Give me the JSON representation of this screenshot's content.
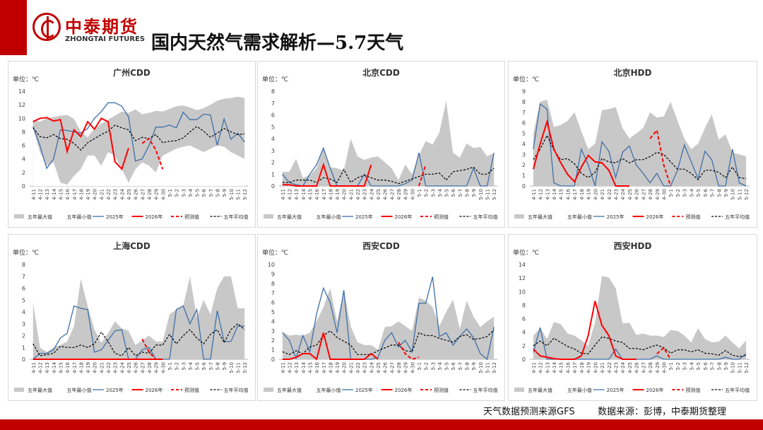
{
  "header": {
    "brand_cn": "中泰期货",
    "brand_en": "ZHONGTAI FUTURES",
    "title": "国内天然气需求解析—5.7天气"
  },
  "footer": {
    "forecast_source": "天气数据预测来源GFS",
    "data_source": "数据来源：彭博，中泰期货整理"
  },
  "colors": {
    "brand": "#c00000",
    "band": "#c8c8c8",
    "y2025": "#3f6fa8",
    "y2026": "#ff0000",
    "avg": "#000000"
  },
  "chart_data": [
    {
      "type": "line",
      "title": "广州CDD",
      "unit": "单位：℃",
      "ylim": [
        0,
        14
      ],
      "yticks": [
        0,
        2,
        4,
        6,
        8,
        10,
        12,
        14
      ],
      "categories": [
        "4-11",
        "4-12",
        "4-13",
        "4-14",
        "4-15",
        "4-16",
        "4-17",
        "4-18",
        "4-19",
        "4-20",
        "4-21",
        "4-22",
        "4-23",
        "4-24",
        "4-25",
        "4-26",
        "4-27",
        "4-28",
        "4-29",
        "4-30",
        "5-1",
        "5-2",
        "5-3",
        "5-4",
        "5-5",
        "5-6",
        "5-7",
        "5-8",
        "5-9",
        "5-10",
        "5-11",
        "5-12"
      ],
      "band_max": [
        9.8,
        9.5,
        10,
        10.2,
        10.4,
        10.5,
        9.9,
        8,
        7.2,
        8.5,
        9.2,
        9.8,
        10.4,
        11,
        10.8,
        11.3,
        10.6,
        10.8,
        11.1,
        11,
        11.4,
        11.8,
        11.9,
        11.6,
        11.2,
        11.5,
        12,
        12.6,
        12.9,
        13,
        13.2,
        13
      ],
      "band_min": [
        8.5,
        5,
        3,
        3.5,
        0.5,
        0.2,
        1.5,
        2.5,
        4.5,
        4.5,
        3,
        5,
        4.5,
        2.5,
        0.5,
        2.5,
        3.5,
        3,
        2,
        4.5,
        5,
        5.5,
        5.8,
        6,
        5.5,
        5,
        5.5,
        6,
        5.8,
        5,
        4.5,
        4
      ],
      "y2025": [
        8.8,
        6,
        2.6,
        4,
        8.3,
        8.2,
        8,
        7.8,
        8.5,
        10,
        11,
        12.3,
        12.3,
        11.8,
        10.2,
        3.7,
        4,
        6,
        8.7,
        8.7,
        9,
        8.6,
        10.9,
        9.8,
        9.8,
        10.6,
        10.5,
        6,
        9.9,
        6.9,
        7.8,
        6.5
      ],
      "y2026": [
        9.5,
        10,
        10.1,
        9.6,
        9.8,
        5.1,
        8.3,
        7.3,
        9.5,
        8.4,
        10,
        9.5,
        3.6,
        2.5,
        5.6
      ],
      "forecast": [
        null,
        null,
        null,
        null,
        null,
        null,
        null,
        null,
        null,
        null,
        null,
        null,
        null,
        null,
        null,
        null,
        6.3,
        7,
        5.3,
        2.5
      ],
      "avg": [
        8.6,
        7.3,
        7.1,
        7.6,
        7,
        6.9,
        6.3,
        5.3,
        6.4,
        7,
        7.6,
        8.1,
        9,
        8.6,
        8.3,
        6.7,
        7.2,
        7,
        7.6,
        6.4,
        6.6,
        6.7,
        7.1,
        8,
        8.8,
        8.1,
        7.2,
        7.8,
        8.5,
        8,
        7.6,
        7.7
      ]
    },
    {
      "type": "line",
      "title": "北京CDD",
      "unit": "单位：℃",
      "ylim": [
        0,
        8
      ],
      "yticks": [
        0,
        1,
        2,
        3,
        4,
        5,
        6,
        7,
        8
      ],
      "categories": [
        "4-11",
        "4-12",
        "4-13",
        "4-14",
        "4-15",
        "4-16",
        "4-17",
        "4-18",
        "4-19",
        "4-20",
        "4-21",
        "4-22",
        "4-23",
        "4-24",
        "4-25",
        "4-26",
        "4-27",
        "4-28",
        "4-29",
        "4-30",
        "5-1",
        "5-2",
        "5-3",
        "5-4",
        "5-5",
        "5-6",
        "5-7",
        "5-8",
        "5-9",
        "5-10",
        "5-11",
        "5-12"
      ],
      "band_max": [
        1.2,
        1.2,
        2.3,
        0.7,
        0.9,
        1.5,
        3.2,
        1.6,
        1.5,
        1.3,
        4,
        2.5,
        2.2,
        2.4,
        2.5,
        2,
        1.5,
        0.5,
        1.8,
        1,
        2.6,
        3.8,
        3.5,
        4.5,
        7.2,
        2.8,
        2.4,
        3.6,
        3.2,
        3.3,
        2.5,
        2.8
      ],
      "band_min": [
        0,
        0,
        0,
        0,
        0,
        0,
        0,
        0,
        0,
        0,
        0,
        0,
        0,
        0,
        0,
        0,
        0,
        0,
        0,
        0,
        0,
        0,
        0,
        0,
        0,
        0,
        0,
        0,
        0,
        0,
        0,
        0
      ],
      "y2025": [
        1,
        0.3,
        0.1,
        0,
        1,
        1.8,
        3.2,
        1.5,
        0,
        0,
        0,
        0,
        1,
        0,
        0,
        0,
        0,
        0,
        0.2,
        0.5,
        2.8,
        0,
        0,
        0,
        0,
        0,
        0,
        0,
        1.5,
        0,
        0,
        2.8
      ],
      "y2026": [
        0.1,
        0.1,
        0,
        0,
        0,
        0,
        1.8,
        0,
        0,
        0,
        0,
        0,
        0,
        1.8
      ],
      "forecast": [
        null,
        null,
        null,
        null,
        null,
        null,
        null,
        null,
        null,
        null,
        null,
        null,
        null,
        null,
        null,
        null,
        null,
        null,
        null,
        null,
        0,
        1.8
      ],
      "avg": [
        0.3,
        0.3,
        0.5,
        0.5,
        0.5,
        0.3,
        0.7,
        0.6,
        0.3,
        1.4,
        0.3,
        0.7,
        0.9,
        0.7,
        0.5,
        0.5,
        0.4,
        0.2,
        0.4,
        0.6,
        0.8,
        1,
        1,
        1.1,
        0.5,
        1.2,
        1.3,
        1.4,
        1.6,
        1,
        1,
        1.5
      ]
    },
    {
      "type": "line",
      "title": "北京HDD",
      "unit": "单位：℃",
      "ylim": [
        0,
        9
      ],
      "yticks": [
        0,
        1,
        2,
        3,
        4,
        5,
        6,
        7,
        8,
        9
      ],
      "categories": [
        "4-11",
        "4-12",
        "4-13",
        "4-14",
        "4-15",
        "4-16",
        "4-17",
        "4-18",
        "4-19",
        "4-20",
        "4-21",
        "4-22",
        "4-23",
        "4-24",
        "4-25",
        "4-26",
        "4-27",
        "4-28",
        "4-29",
        "4-30",
        "5-1",
        "5-2",
        "5-3",
        "5-4",
        "5-5",
        "5-6",
        "5-7",
        "5-8",
        "5-9",
        "5-10",
        "5-11",
        "5-12"
      ],
      "band_max": [
        5,
        8,
        8.2,
        5.6,
        5.8,
        6.2,
        7,
        5.2,
        3.5,
        4,
        7.2,
        7.3,
        7.5,
        5.5,
        4.5,
        5,
        5.5,
        7,
        6.5,
        6.6,
        8,
        6.2,
        4.5,
        3.5,
        4,
        5.5,
        6.8,
        4.4,
        4.9,
        3.2,
        3,
        2.8
      ],
      "band_min": [
        0,
        0,
        0,
        0,
        0,
        0,
        0,
        0,
        0,
        0,
        0,
        0,
        0,
        0,
        0,
        0,
        0,
        0,
        0,
        0,
        0,
        0,
        0,
        0,
        0,
        0,
        0,
        0,
        0,
        0,
        0,
        0
      ],
      "y2025": [
        3.5,
        7.8,
        7.3,
        0.3,
        0,
        0,
        0,
        3.5,
        2,
        0,
        4.2,
        3.3,
        0.8,
        3.2,
        3.8,
        2,
        1.2,
        0.3,
        1.2,
        0,
        0,
        1.5,
        3.9,
        2.3,
        0.7,
        3.3,
        2.5,
        0,
        0,
        3.5,
        0.3,
        0
      ],
      "y2026": [
        1.6,
        4,
        6.1,
        3.5,
        2.2,
        1.1,
        0.4,
        1.8,
        2.9,
        2.3,
        2.2,
        1.5,
        0,
        0,
        0
      ],
      "forecast": [
        null,
        null,
        null,
        null,
        null,
        null,
        null,
        null,
        null,
        null,
        null,
        null,
        null,
        null,
        null,
        null,
        null,
        4.5,
        5.3,
        2,
        0
      ],
      "avg": [
        2.5,
        3.5,
        4.8,
        3.4,
        2.5,
        2.6,
        2.1,
        1.2,
        0.8,
        1.3,
        2.6,
        2.3,
        2.2,
        2.6,
        2.2,
        2.5,
        2.5,
        2.8,
        3.2,
        3,
        2.3,
        1.6,
        1.6,
        1.2,
        0.6,
        1.5,
        1.5,
        1.3,
        0.8,
        1.8,
        0.8,
        0.7
      ]
    },
    {
      "type": "line",
      "title": "上海CDD",
      "unit": "单位：℃",
      "ylim": [
        0,
        8
      ],
      "yticks": [
        0,
        1,
        2,
        3,
        4,
        5,
        6,
        7,
        8
      ],
      "categories": [
        "4-11",
        "4-12",
        "4-13",
        "4-14",
        "4-15",
        "4-16",
        "4-17",
        "4-18",
        "4-19",
        "4-20",
        "4-21",
        "4-22",
        "4-23",
        "4-24",
        "4-25",
        "4-26",
        "4-27",
        "4-28",
        "4-29",
        "4-30",
        "5-1",
        "5-2",
        "5-3",
        "5-4",
        "5-5",
        "5-6",
        "5-7",
        "5-8",
        "5-9",
        "5-10",
        "5-11",
        "5-12"
      ],
      "band_max": [
        4.8,
        1,
        0.6,
        1,
        1.2,
        1.5,
        2.8,
        6.8,
        4.5,
        2.5,
        1.4,
        2.2,
        3.2,
        2.6,
        2.4,
        1.2,
        1.6,
        2,
        1.5,
        1.5,
        3.8,
        4.2,
        4.5,
        7,
        3.5,
        5,
        3.8,
        6,
        7,
        7,
        4.3,
        4.3
      ],
      "band_min": [
        0,
        0,
        0,
        0,
        0,
        0,
        0,
        0,
        0,
        0,
        0,
        0,
        0,
        0,
        0,
        0,
        0,
        0,
        0,
        0,
        0,
        0,
        0,
        0,
        0,
        0,
        0,
        0,
        0,
        0,
        0,
        0
      ],
      "y2025": [
        0,
        0.5,
        0.5,
        0.8,
        1.8,
        2.2,
        4.5,
        4.3,
        4.2,
        0.6,
        0.8,
        1.6,
        2.4,
        2.5,
        0,
        0,
        0.8,
        1,
        0,
        0,
        0,
        4.2,
        4.5,
        3,
        4.2,
        0,
        0,
        4.1,
        1.5,
        1.5,
        2.8,
        2.8
      ],
      "y2026": [
        0,
        0,
        0,
        0,
        0,
        0,
        0,
        0,
        0,
        0,
        0,
        0,
        0,
        0,
        0,
        0,
        0,
        0,
        0,
        0
      ],
      "forecast": [
        null,
        null,
        null,
        null,
        null,
        null,
        null,
        null,
        null,
        null,
        null,
        null,
        null,
        null,
        null,
        null,
        1.7,
        0.6,
        0,
        0
      ],
      "avg": [
        1.3,
        0.3,
        0.4,
        0.5,
        1.1,
        1,
        1,
        1.2,
        1,
        1.3,
        2.3,
        1.5,
        0.5,
        0.3,
        1,
        0.3,
        0.6,
        0.5,
        1.2,
        1.2,
        2.1,
        1.3,
        2,
        2.5,
        1.8,
        1.3,
        2.1,
        2.5,
        1.4,
        2.5,
        3,
        2.5
      ]
    },
    {
      "type": "line",
      "title": "西安CDD",
      "unit": "单位：℃",
      "ylim": [
        0,
        10
      ],
      "yticks": [
        0,
        1,
        2,
        3,
        4,
        5,
        6,
        7,
        8,
        9,
        10
      ],
      "categories": [
        "4-11",
        "4-12",
        "4-13",
        "4-14",
        "4-15",
        "4-16",
        "4-17",
        "4-18",
        "4-19",
        "4-20",
        "4-21",
        "4-22",
        "4-23",
        "4-24",
        "4-25",
        "4-26",
        "4-27",
        "4-28",
        "4-29",
        "4-30",
        "5-1",
        "5-2",
        "5-3",
        "5-4",
        "5-5",
        "5-6",
        "5-7",
        "5-8",
        "5-9",
        "5-10",
        "5-11",
        "5-12"
      ],
      "band_max": [
        2.9,
        2.5,
        2.6,
        2.5,
        2.8,
        4,
        5.5,
        7.5,
        4,
        7.3,
        3.5,
        1.8,
        1.5,
        1.5,
        1,
        3.4,
        3.5,
        4,
        3.5,
        3,
        6.5,
        6.2,
        5.5,
        3.5,
        5,
        6.3,
        3.2,
        6.2,
        4.5,
        3.4,
        4,
        4.5
      ],
      "band_min": [
        0,
        0,
        0,
        0,
        0,
        0,
        0,
        0,
        0,
        0,
        0,
        0,
        0,
        0,
        0,
        0,
        0,
        0,
        0,
        0,
        0,
        0,
        0,
        0,
        0,
        0,
        0,
        0,
        0,
        0,
        0,
        0
      ],
      "y2025": [
        2.8,
        2,
        0.1,
        2.5,
        0.8,
        4.8,
        7.5,
        6,
        2.8,
        7.3,
        0,
        0,
        0,
        0,
        0.2,
        2,
        2.8,
        1.3,
        2,
        0.8,
        5.9,
        5.9,
        8.7,
        2.4,
        2.8,
        1.5,
        2.4,
        3.2,
        2.3,
        0.6,
        0,
        3.4
      ],
      "y2026": [
        0,
        0,
        0.2,
        0.6,
        0.6,
        0,
        2.8,
        0,
        0,
        0,
        0,
        0,
        0,
        0.6,
        0
      ],
      "forecast": [
        null,
        null,
        null,
        null,
        null,
        null,
        null,
        null,
        null,
        null,
        null,
        null,
        null,
        null,
        null,
        null,
        null,
        1.8,
        0.6,
        0,
        0.2
      ],
      "avg": [
        0.8,
        0.5,
        0.9,
        0.6,
        1.3,
        1.5,
        2.5,
        3,
        2.3,
        1.9,
        1.5,
        0.5,
        0.5,
        0.5,
        0.9,
        1.2,
        1.5,
        1.5,
        0.9,
        0.8,
        2.8,
        2.5,
        2.5,
        2.2,
        2,
        1.8,
        2.4,
        2.6,
        2.1,
        2.2,
        2.4,
        3.1
      ]
    },
    {
      "type": "line",
      "title": "西安HDD",
      "unit": "单位：℃",
      "ylim": [
        0,
        14
      ],
      "yticks": [
        0,
        2,
        4,
        6,
        8,
        10,
        12,
        14
      ],
      "categories": [
        "4-11",
        "4-12",
        "4-13",
        "4-14",
        "4-15",
        "4-16",
        "4-17",
        "4-18",
        "4-19",
        "4-20",
        "4-21",
        "4-22",
        "4-23",
        "4-24",
        "4-25",
        "4-26",
        "4-27",
        "4-28",
        "4-29",
        "4-30",
        "5-1",
        "5-2",
        "5-3",
        "5-4",
        "5-5",
        "5-6",
        "5-7",
        "5-8",
        "5-9",
        "5-10",
        "5-11",
        "5-12"
      ],
      "band_max": [
        3.5,
        4.6,
        3,
        5.5,
        5.2,
        3.8,
        3.5,
        2.8,
        2,
        5.5,
        12.3,
        12.1,
        10.5,
        5.3,
        5.4,
        3.6,
        3.8,
        3.5,
        3.5,
        3.3,
        4.3,
        4.2,
        3.5,
        2.5,
        4.6,
        3,
        2.5,
        2.6,
        3.5,
        2.5,
        1.6,
        2.8
      ],
      "band_min": [
        0,
        0,
        0,
        0,
        0,
        0,
        0,
        0,
        0,
        0,
        0,
        0,
        0,
        0,
        0,
        0,
        0,
        0,
        0,
        0,
        0,
        0,
        0,
        0,
        0,
        0,
        0,
        0,
        0,
        0,
        0,
        0
      ],
      "y2025": [
        1,
        4.7,
        0,
        0,
        0,
        0,
        0,
        0,
        0,
        0,
        0,
        0,
        1.5,
        0,
        0,
        0,
        0,
        0,
        0.5,
        0,
        0,
        0,
        0,
        0,
        0,
        0,
        0,
        0,
        0.3,
        0,
        0,
        0.8
      ],
      "y2026": [
        1.5,
        0.5,
        0.3,
        0.1,
        0,
        0,
        0,
        0.5,
        3.5,
        8.6,
        5,
        3.5,
        0.5,
        0,
        0,
        0
      ],
      "forecast": [
        null,
        null,
        null,
        null,
        null,
        null,
        null,
        null,
        null,
        null,
        null,
        null,
        null,
        null,
        null,
        null,
        null,
        null,
        0.8,
        1.7,
        0
      ],
      "avg": [
        2,
        2.7,
        2,
        3.1,
        2.5,
        1.9,
        1.5,
        0.9,
        0.8,
        2.1,
        3.3,
        3.1,
        2.7,
        2.5,
        1.6,
        1.6,
        1.4,
        1.8,
        2.1,
        1.7,
        0.9,
        1.4,
        1.4,
        1.1,
        1.4,
        0.9,
        0.8,
        0.6,
        1.3,
        0.6,
        0.4,
        0.6
      ]
    }
  ],
  "legend": {
    "band_max": "五年最大值",
    "band_min": "五年最小值",
    "y2025": "2025年",
    "y2026": "2026年",
    "forecast": "预测值",
    "avg": "五年平均值"
  }
}
